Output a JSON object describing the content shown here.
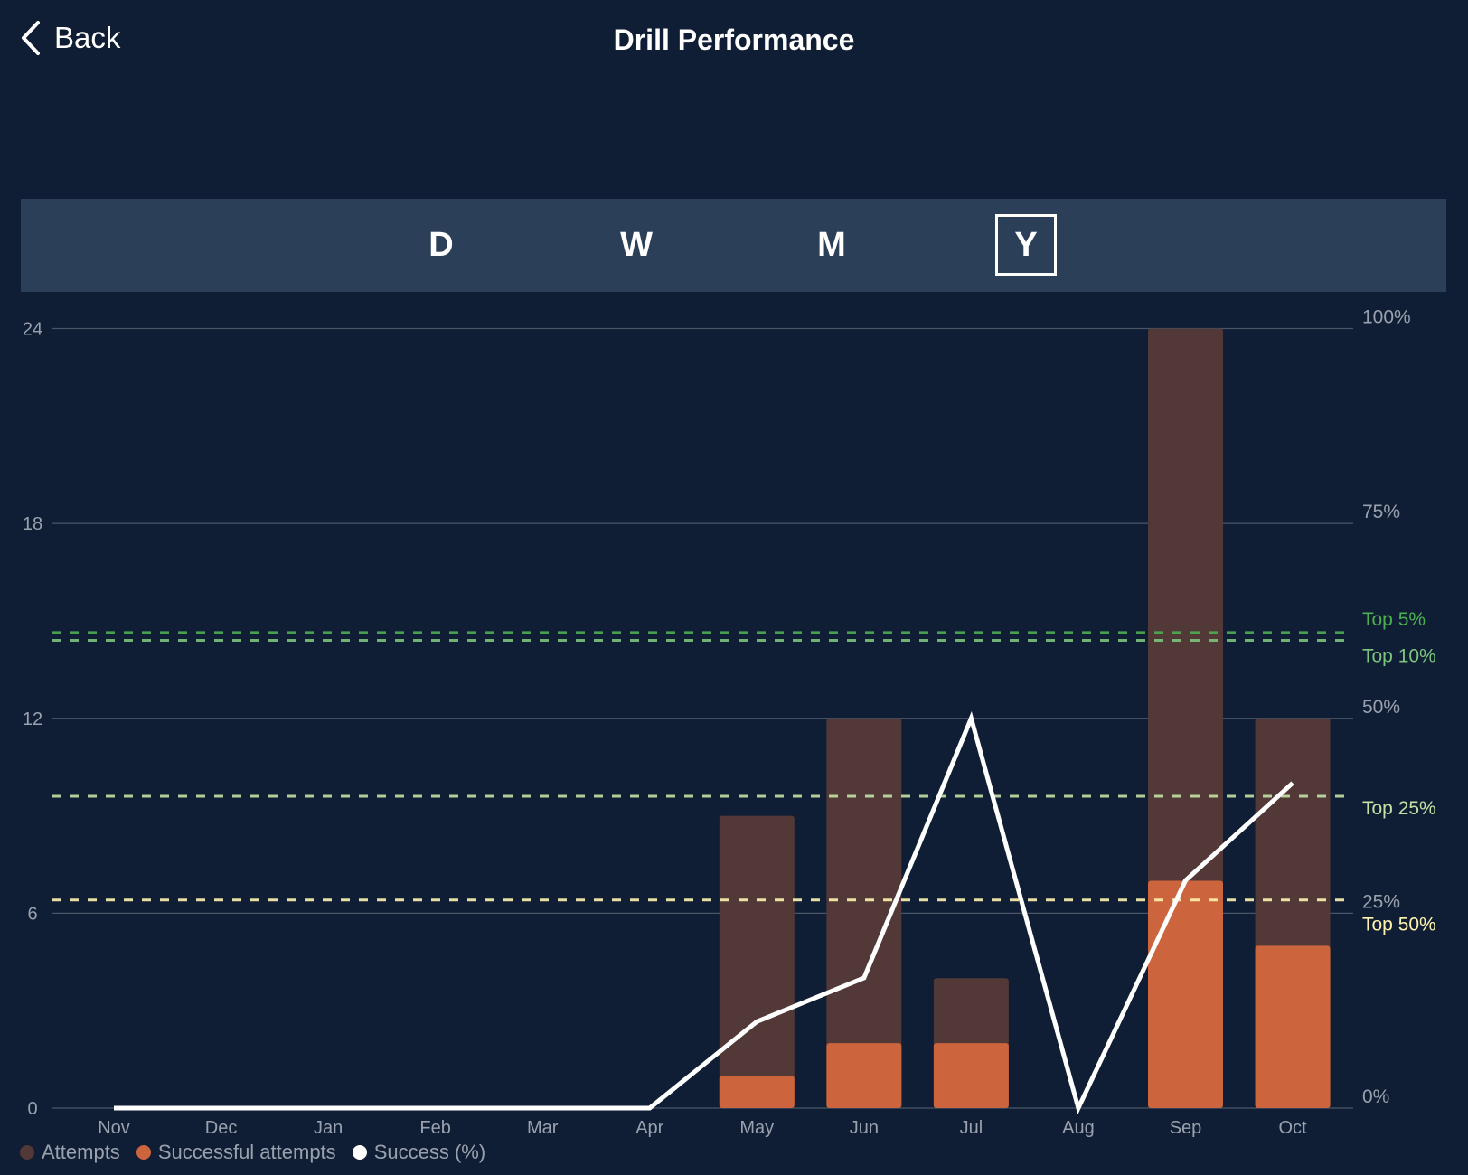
{
  "header": {
    "back_label": "Back",
    "title": "Drill Performance"
  },
  "ranges": {
    "options": [
      "D",
      "W",
      "M",
      "Y"
    ],
    "selected": "Y"
  },
  "chart_data": {
    "type": "bar",
    "categories": [
      "Nov",
      "Dec",
      "Jan",
      "Feb",
      "Mar",
      "Apr",
      "May",
      "Jun",
      "Jul",
      "Aug",
      "Sep",
      "Oct"
    ],
    "left_axis": {
      "ticks": [
        "0",
        "6",
        "12",
        "18",
        "24"
      ],
      "ylim": [
        0,
        24
      ]
    },
    "right_axis": {
      "ticks": [
        "0%",
        "25%",
        "50%",
        "75%",
        "100%"
      ],
      "ylim": [
        0,
        100
      ]
    },
    "grid": true,
    "legend_placement": "bottom-left",
    "series": [
      {
        "name": "Attempts",
        "type": "bar",
        "axis": "left",
        "color": "#523837",
        "values": [
          0,
          0,
          0,
          0,
          0,
          0,
          9,
          12,
          4,
          0,
          24,
          12
        ]
      },
      {
        "name": "Successful attempts",
        "type": "bar",
        "axis": "left",
        "color": "#cc653d",
        "values": [
          0,
          0,
          0,
          0,
          0,
          0,
          1,
          2,
          2,
          0,
          7,
          5
        ]
      },
      {
        "name": "Success (%)",
        "type": "line",
        "axis": "right",
        "color": "#ffffff",
        "values": [
          0,
          0,
          0,
          0,
          0,
          0,
          11.1,
          16.7,
          50,
          0,
          29.2,
          41.7
        ]
      }
    ],
    "reference_lines": [
      {
        "label": "Top 5%",
        "value": 61,
        "color": "#4caf50"
      },
      {
        "label": "Top 10%",
        "value": 60,
        "color": "#7cc47f"
      },
      {
        "label": "Top 25%",
        "value": 40,
        "color": "#c5e1a5"
      },
      {
        "label": "Top 50%",
        "value": 26.7,
        "color": "#fff3b0"
      }
    ]
  }
}
